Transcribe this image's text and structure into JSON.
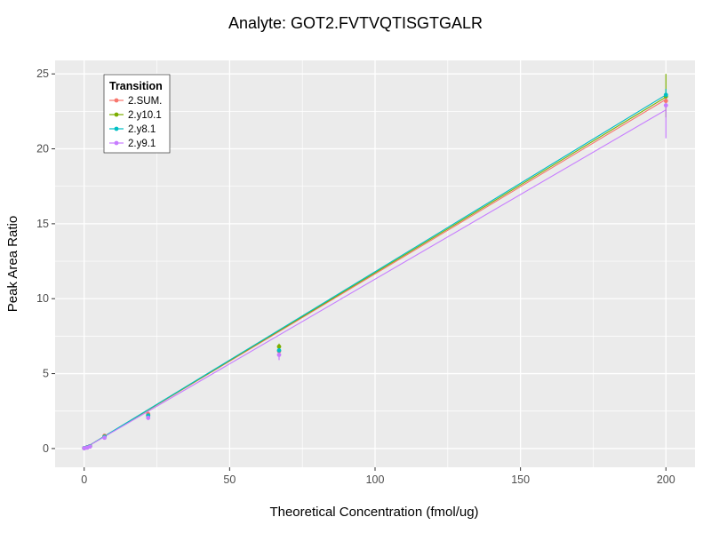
{
  "chart_data": {
    "type": "scatter",
    "title": "Analyte: GOT2.FVTVQTISGTGALR",
    "xlabel": "Theoretical Concentration (fmol/ug)",
    "ylabel": "Peak Area Ratio",
    "xlim": [
      -10,
      210
    ],
    "ylim": [
      -1.25,
      25.9
    ],
    "x_ticks": [
      0,
      50,
      100,
      150,
      200
    ],
    "y_ticks": [
      0,
      5,
      10,
      15,
      20,
      25
    ],
    "x_minor_ticks": [
      25,
      75,
      125,
      175
    ],
    "y_minor_ticks": [
      2.5,
      7.5,
      12.5,
      17.5,
      22.5
    ],
    "grid": true,
    "panel_background": "#EBEBEB",
    "gridline_color": "#FFFFFF",
    "legend": {
      "title": "Transition",
      "position": "inside-top-left"
    },
    "series": [
      {
        "name": "2.SUM.",
        "color": "#F8766D",
        "fit_line": {
          "x1": 0,
          "y1": 0,
          "x2": 200,
          "y2": 23.3
        },
        "points": [
          {
            "x": 0,
            "y": 0.03
          },
          {
            "x": 1,
            "y": 0.08
          },
          {
            "x": 2,
            "y": 0.16
          },
          {
            "x": 7,
            "y": 0.85
          },
          {
            "x": 22,
            "y": 2.3,
            "ymin": 2.15,
            "ymax": 2.45
          },
          {
            "x": 67,
            "y": 6.5,
            "ymin": 6.25,
            "ymax": 6.75
          },
          {
            "x": 200,
            "y": 23.2,
            "ymin": 22.7,
            "ymax": 23.7
          }
        ]
      },
      {
        "name": "2.y10.1",
        "color": "#7CAE00",
        "fit_line": {
          "x1": 0,
          "y1": 0,
          "x2": 200,
          "y2": 23.45
        },
        "points": [
          {
            "x": 0,
            "y": 0.03
          },
          {
            "x": 1,
            "y": 0.08
          },
          {
            "x": 2,
            "y": 0.15
          },
          {
            "x": 7,
            "y": 0.8
          },
          {
            "x": 22,
            "y": 2.2
          },
          {
            "x": 67,
            "y": 6.8,
            "ymin": 6.6,
            "ymax": 7.0
          },
          {
            "x": 200,
            "y": 23.5,
            "ymin": 22.1,
            "ymax": 25.0
          }
        ]
      },
      {
        "name": "2.y8.1",
        "color": "#00BFC4",
        "fit_line": {
          "x1": 0,
          "y1": 0,
          "x2": 200,
          "y2": 23.6
        },
        "points": [
          {
            "x": 0,
            "y": 0.03
          },
          {
            "x": 1,
            "y": 0.08
          },
          {
            "x": 2,
            "y": 0.15
          },
          {
            "x": 7,
            "y": 0.78
          },
          {
            "x": 22,
            "y": 2.2
          },
          {
            "x": 67,
            "y": 6.55,
            "ymin": 6.4,
            "ymax": 6.7
          },
          {
            "x": 200,
            "y": 23.6,
            "ymin": 23.2,
            "ymax": 24.0
          }
        ]
      },
      {
        "name": "2.y9.1",
        "color": "#C77CFF",
        "fit_line": {
          "x1": 0,
          "y1": 0,
          "x2": 200,
          "y2": 22.6
        },
        "points": [
          {
            "x": 0,
            "y": 0.02
          },
          {
            "x": 1,
            "y": 0.06
          },
          {
            "x": 2,
            "y": 0.13
          },
          {
            "x": 7,
            "y": 0.72
          },
          {
            "x": 22,
            "y": 2.05,
            "ymin": 1.9,
            "ymax": 2.2
          },
          {
            "x": 67,
            "y": 6.25,
            "ymin": 5.9,
            "ymax": 6.6
          },
          {
            "x": 200,
            "y": 22.9,
            "ymin": 20.7,
            "ymax": 23.5
          }
        ]
      }
    ]
  }
}
